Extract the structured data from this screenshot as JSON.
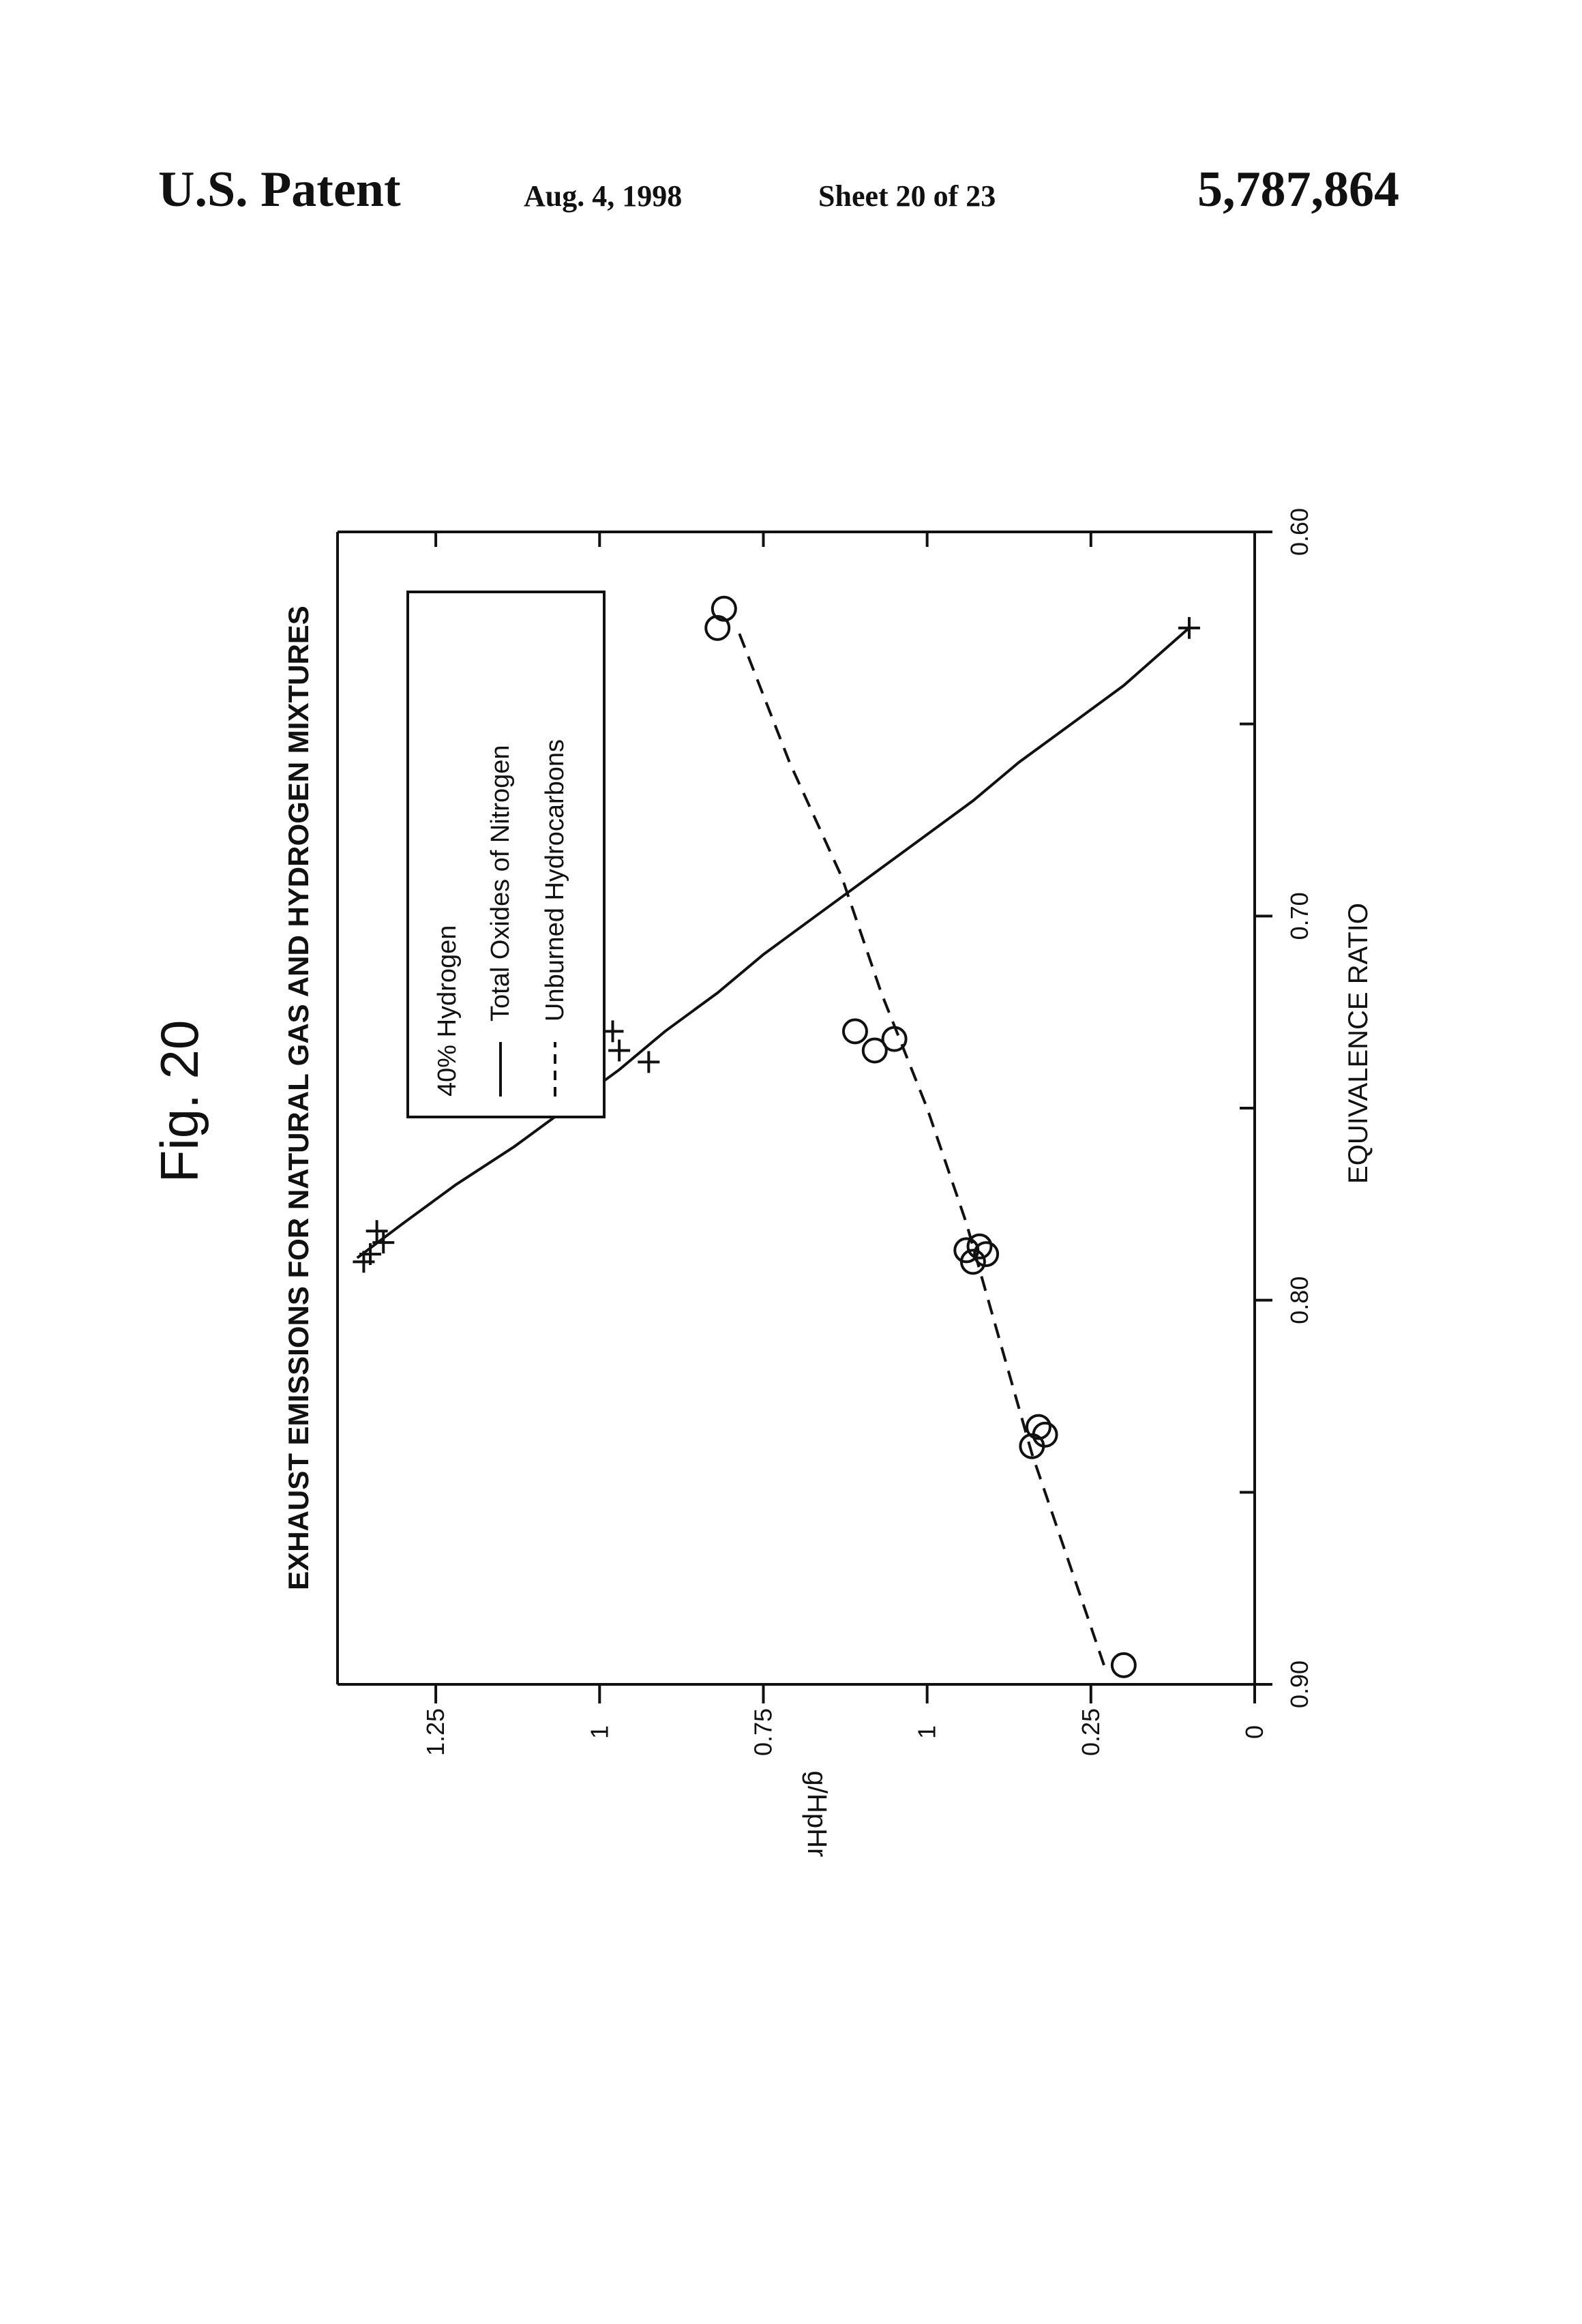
{
  "header": {
    "left": "U.S. Patent",
    "date": "Aug. 4, 1998",
    "sheet": "Sheet 20 of 23",
    "patent_number": "5,787,864"
  },
  "figure_label": "Fig. 20",
  "chart_data": {
    "type": "scatter",
    "title": "EXHAUST EMISSIONS FOR NATURAL GAS AND HYDROGEN MIXTURES",
    "xlabel": "EQUIVALENCE RATIO",
    "ylabel": "g/HpHr",
    "xlim": [
      0.9,
      0.6
    ],
    "ylim": [
      0,
      1.4
    ],
    "x_ticks": [
      0.9,
      0.8,
      0.7,
      0.6
    ],
    "x_tick_labels": [
      "0.90",
      "0.80",
      "0.70",
      "0.60"
    ],
    "x_minor_ticks": [
      0.85,
      0.75,
      0.65
    ],
    "y_ticks": [
      0,
      0.25,
      0.5,
      0.75,
      1,
      1.25
    ],
    "y_tick_labels": [
      "0",
      "0.25",
      "1",
      "0.75",
      "1",
      "1.25"
    ],
    "grid": false,
    "legend_position": "upper-right",
    "legend": {
      "title": "40% Hydrogen",
      "entries": [
        {
          "label": "Total Oxides of Nitrogen",
          "style": "solid"
        },
        {
          "label": "Unburned Hydrocarbons",
          "style": "dashed"
        }
      ]
    },
    "series": [
      {
        "name": "Total Oxides of Nitrogen",
        "marker": "plus",
        "line": "solid",
        "points": [
          [
            0.788,
            1.35
          ],
          [
            0.785,
            1.33
          ],
          [
            0.782,
            1.34
          ],
          [
            0.79,
            1.36
          ],
          [
            0.73,
            0.98
          ],
          [
            0.735,
            0.97
          ],
          [
            0.738,
            0.925
          ],
          [
            0.625,
            0.1
          ]
        ],
        "curve": [
          [
            0.789,
            1.37
          ],
          [
            0.78,
            1.3
          ],
          [
            0.77,
            1.22
          ],
          [
            0.76,
            1.13
          ],
          [
            0.75,
            1.05
          ],
          [
            0.74,
            0.97
          ],
          [
            0.73,
            0.9
          ],
          [
            0.72,
            0.82
          ],
          [
            0.71,
            0.75
          ],
          [
            0.7,
            0.67
          ],
          [
            0.69,
            0.59
          ],
          [
            0.68,
            0.51
          ],
          [
            0.67,
            0.43
          ],
          [
            0.66,
            0.36
          ],
          [
            0.65,
            0.28
          ],
          [
            0.64,
            0.2
          ],
          [
            0.625,
            0.1
          ]
        ]
      },
      {
        "name": "Unburned Hydrocarbons",
        "marker": "circle",
        "line": "dashed",
        "points": [
          [
            0.895,
            0.2
          ],
          [
            0.838,
            0.34
          ],
          [
            0.835,
            0.32
          ],
          [
            0.833,
            0.33
          ],
          [
            0.79,
            0.43
          ],
          [
            0.788,
            0.41
          ],
          [
            0.786,
            0.42
          ],
          [
            0.787,
            0.44
          ],
          [
            0.732,
            0.55
          ],
          [
            0.735,
            0.58
          ],
          [
            0.73,
            0.61
          ],
          [
            0.625,
            0.82
          ],
          [
            0.62,
            0.81
          ]
        ],
        "curve": [
          [
            0.895,
            0.23
          ],
          [
            0.87,
            0.28
          ],
          [
            0.84,
            0.34
          ],
          [
            0.81,
            0.39
          ],
          [
            0.78,
            0.44
          ],
          [
            0.75,
            0.5
          ],
          [
            0.72,
            0.57
          ],
          [
            0.69,
            0.63
          ],
          [
            0.66,
            0.71
          ],
          [
            0.625,
            0.79
          ]
        ]
      }
    ]
  }
}
